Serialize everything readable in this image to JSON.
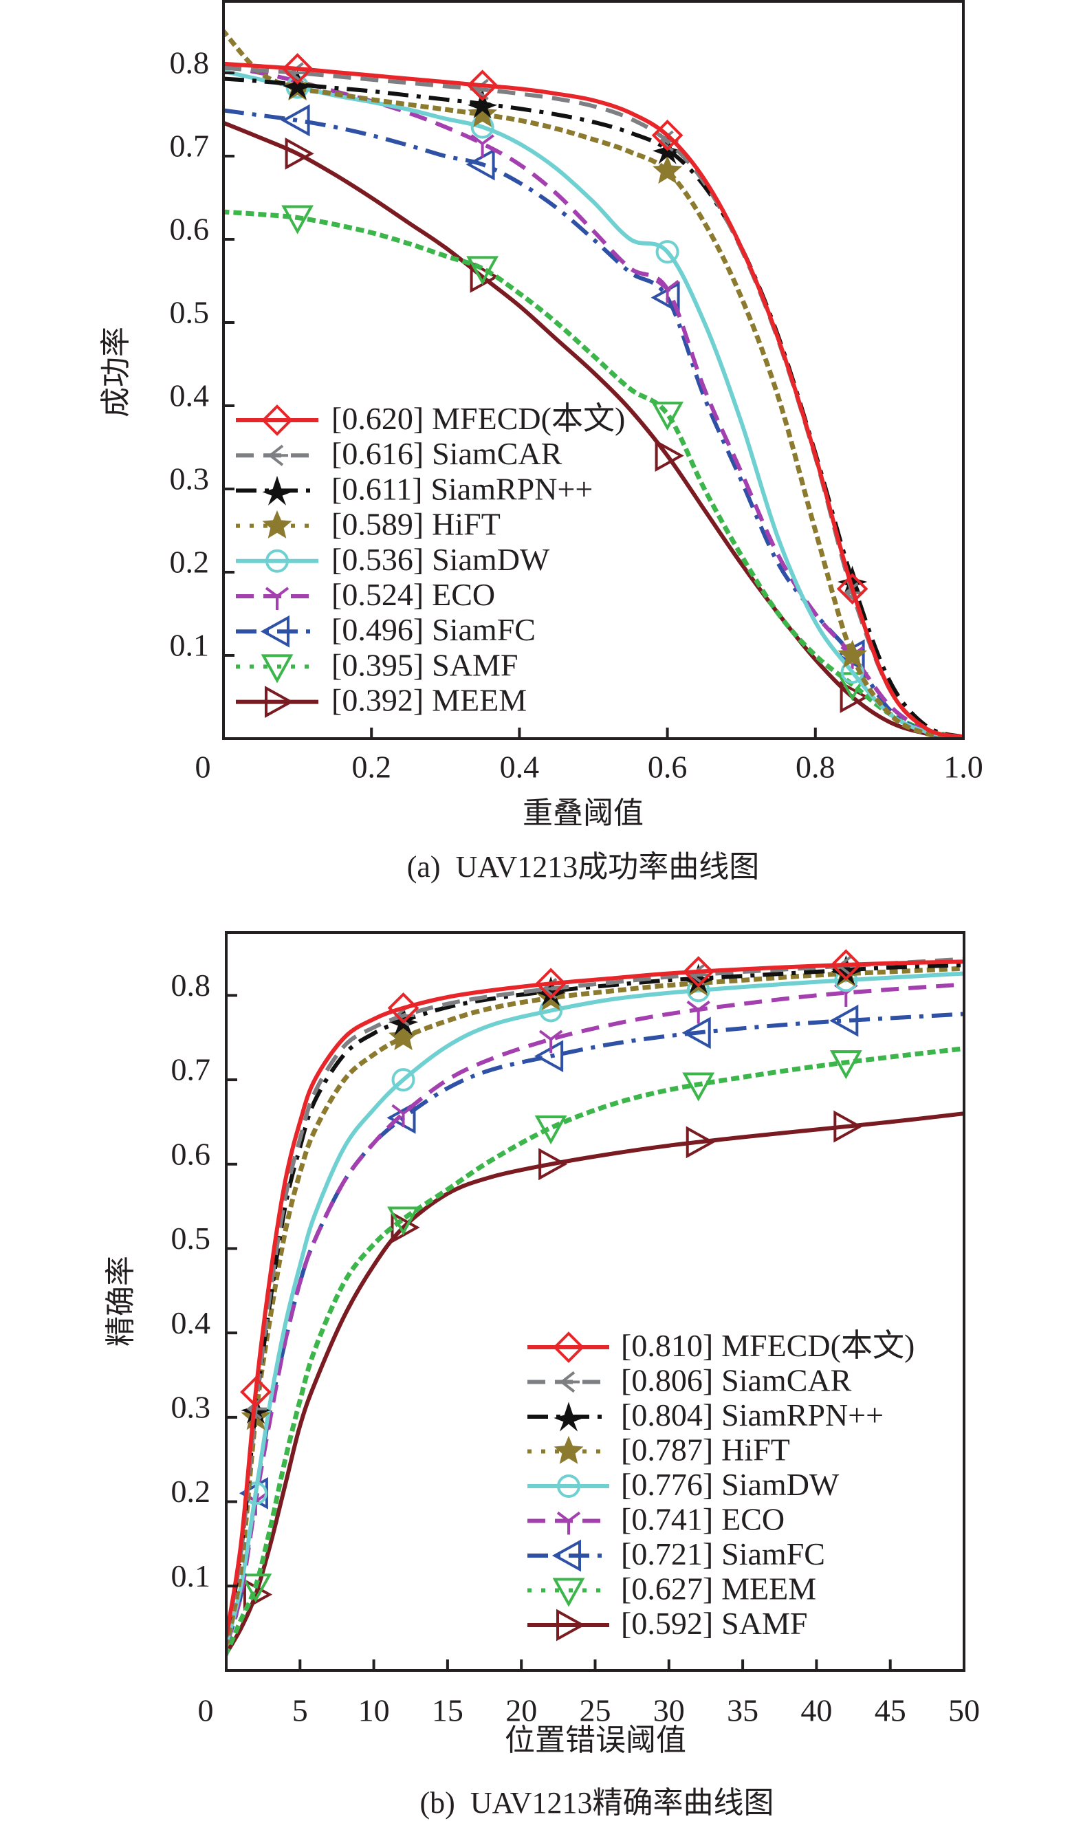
{
  "chart_data": [
    {
      "id": "a",
      "type": "line",
      "title": "(a)  UAV1213成功率曲线图",
      "xlabel": "重叠阈值",
      "ylabel": "成功率",
      "xlim": [
        0,
        1.0
      ],
      "ylim": [
        0,
        0.887
      ],
      "xticks": [
        {
          "value": 0,
          "label": "0"
        },
        {
          "value": 0.2,
          "label": "0.2"
        },
        {
          "value": 0.4,
          "label": "0.4"
        },
        {
          "value": 0.6,
          "label": "0.6"
        },
        {
          "value": 0.8,
          "label": "0.8"
        },
        {
          "value": 1.0,
          "label": "1.0"
        }
      ],
      "yticks": [
        {
          "value": 0.1,
          "label": "0.1"
        },
        {
          "value": 0.2,
          "label": "0.2"
        },
        {
          "value": 0.3,
          "label": "0.3"
        },
        {
          "value": 0.4,
          "label": "0.4"
        },
        {
          "value": 0.5,
          "label": "0.5"
        },
        {
          "value": 0.6,
          "label": "0.6"
        },
        {
          "value": 0.7,
          "label": "0.7"
        },
        {
          "value": 0.8,
          "label": "0.8"
        }
      ],
      "grid": false,
      "legend_position": "lower-left",
      "marker_x": [
        0.1,
        0.35,
        0.6,
        0.85
      ],
      "x": [
        0,
        0.05,
        0.1,
        0.15,
        0.2,
        0.25,
        0.3,
        0.35,
        0.4,
        0.45,
        0.5,
        0.55,
        0.6,
        0.65,
        0.7,
        0.75,
        0.8,
        0.85,
        0.9,
        0.95,
        1.0
      ],
      "series": [
        {
          "name": "MFECD(本文)",
          "score": "[0.620]",
          "color": "#e8262a",
          "dash": "solid",
          "marker": "diamond",
          "values": [
            0.811,
            0.808,
            0.805,
            0.801,
            0.797,
            0.793,
            0.789,
            0.785,
            0.781,
            0.775,
            0.767,
            0.752,
            0.725,
            0.672,
            0.59,
            0.48,
            0.34,
            0.18,
            0.06,
            0.012,
            0.002
          ]
        },
        {
          "name": "SiamCAR",
          "score": "[0.616]",
          "color": "#7d7f82",
          "dash": "dash",
          "marker": "tri-left",
          "values": [
            0.806,
            0.803,
            0.8,
            0.796,
            0.792,
            0.788,
            0.784,
            0.78,
            0.775,
            0.769,
            0.76,
            0.745,
            0.718,
            0.668,
            0.588,
            0.478,
            0.338,
            0.175,
            0.06,
            0.012,
            0.002
          ]
        },
        {
          "name": "SiamRPN++",
          "score": "[0.611]",
          "color": "#111111",
          "dash": "dashdot",
          "marker": "star4",
          "values": [
            0.793,
            0.79,
            0.786,
            0.782,
            0.778,
            0.773,
            0.768,
            0.763,
            0.757,
            0.75,
            0.741,
            0.728,
            0.708,
            0.664,
            0.59,
            0.483,
            0.343,
            0.19,
            0.07,
            0.015,
            0.002
          ]
        },
        {
          "name": "HiFT",
          "score": "[0.589]",
          "color": "#8c7a2e",
          "dash": "dot",
          "marker": "star5",
          "values": [
            0.85,
            0.8,
            0.782,
            0.775,
            0.768,
            0.762,
            0.756,
            0.75,
            0.743,
            0.733,
            0.72,
            0.705,
            0.682,
            0.62,
            0.53,
            0.41,
            0.25,
            0.1,
            0.03,
            0.006,
            0.001
          ]
        },
        {
          "name": "SiamDW",
          "score": "[0.536]",
          "color": "#6fd0d2",
          "dash": "solid",
          "marker": "circle",
          "values": [
            0.802,
            0.792,
            0.783,
            0.773,
            0.765,
            0.756,
            0.745,
            0.735,
            0.715,
            0.685,
            0.645,
            0.6,
            0.585,
            0.5,
            0.38,
            0.24,
            0.14,
            0.08,
            0.03,
            0.008,
            0.001
          ]
        },
        {
          "name": "ECO",
          "score": "[0.524]",
          "color": "#a33fae",
          "dash": "dash",
          "marker": "tri-down",
          "values": [
            0.808,
            0.8,
            0.79,
            0.778,
            0.766,
            0.752,
            0.735,
            0.715,
            0.69,
            0.655,
            0.61,
            0.565,
            0.54,
            0.42,
            0.32,
            0.22,
            0.15,
            0.1,
            0.04,
            0.01,
            0.001
          ]
        },
        {
          "name": "SiamFC",
          "score": "[0.496]",
          "color": "#2e51a6",
          "dash": "dashdot",
          "marker": "tri-leftopen",
          "values": [
            0.755,
            0.749,
            0.743,
            0.735,
            0.725,
            0.713,
            0.7,
            0.69,
            0.668,
            0.638,
            0.6,
            0.56,
            0.53,
            0.41,
            0.31,
            0.21,
            0.15,
            0.1,
            0.035,
            0.008,
            0.001
          ]
        },
        {
          "name": "SAMF",
          "score": "[0.395]",
          "color": "#3cb54a",
          "dash": "dot",
          "marker": "triangle-down",
          "values": [
            0.633,
            0.63,
            0.626,
            0.618,
            0.608,
            0.595,
            0.58,
            0.565,
            0.535,
            0.5,
            0.46,
            0.42,
            0.39,
            0.3,
            0.22,
            0.15,
            0.1,
            0.065,
            0.03,
            0.01,
            0.001
          ]
        },
        {
          "name": "MEEM",
          "score": "[0.392]",
          "color": "#7a1b22",
          "dash": "solid",
          "marker": "triangle-right",
          "values": [
            0.74,
            0.722,
            0.703,
            0.678,
            0.65,
            0.62,
            0.59,
            0.555,
            0.52,
            0.48,
            0.44,
            0.395,
            0.34,
            0.275,
            0.21,
            0.15,
            0.095,
            0.05,
            0.02,
            0.006,
            0.001
          ]
        }
      ]
    },
    {
      "id": "b",
      "type": "line",
      "title": "(b)  UAV1213精确率曲线图",
      "xlabel": "位置错误阈值",
      "ylabel": "精确率",
      "xlim": [
        0,
        50
      ],
      "ylim": [
        0,
        0.875
      ],
      "xticks": [
        {
          "value": 0,
          "label": "0"
        },
        {
          "value": 5,
          "label": "5"
        },
        {
          "value": 10,
          "label": "10"
        },
        {
          "value": 15,
          "label": "15"
        },
        {
          "value": 20,
          "label": "20"
        },
        {
          "value": 25,
          "label": "25"
        },
        {
          "value": 30,
          "label": "30"
        },
        {
          "value": 35,
          "label": "35"
        },
        {
          "value": 40,
          "label": "40"
        },
        {
          "value": 45,
          "label": "45"
        },
        {
          "value": 50,
          "label": "50"
        }
      ],
      "yticks": [
        {
          "value": 0.1,
          "label": "0.1"
        },
        {
          "value": 0.2,
          "label": "0.2"
        },
        {
          "value": 0.3,
          "label": "0.3"
        },
        {
          "value": 0.4,
          "label": "0.4"
        },
        {
          "value": 0.5,
          "label": "0.5"
        },
        {
          "value": 0.6,
          "label": "0.6"
        },
        {
          "value": 0.7,
          "label": "0.7"
        },
        {
          "value": 0.8,
          "label": "0.8"
        }
      ],
      "grid": false,
      "legend_position": "lower-right",
      "marker_x": [
        2,
        12,
        22,
        32,
        42
      ],
      "x": [
        0,
        1,
        2,
        3,
        4,
        5,
        6,
        8,
        10,
        12,
        15,
        18,
        22,
        26,
        30,
        35,
        40,
        45,
        50
      ],
      "series": [
        {
          "name": "MFECD(本文)",
          "score": "[0.810]",
          "color": "#e8262a",
          "dash": "solid",
          "marker": "diamond",
          "values": [
            0.04,
            0.15,
            0.33,
            0.47,
            0.58,
            0.65,
            0.7,
            0.75,
            0.772,
            0.785,
            0.798,
            0.806,
            0.814,
            0.82,
            0.826,
            0.831,
            0.835,
            0.838,
            0.84
          ]
        },
        {
          "name": "SiamCAR",
          "score": "[0.806]",
          "color": "#7d7f82",
          "dash": "dash",
          "marker": "tri-left",
          "values": [
            0.04,
            0.14,
            0.31,
            0.45,
            0.56,
            0.63,
            0.685,
            0.74,
            0.762,
            0.776,
            0.79,
            0.799,
            0.808,
            0.815,
            0.822,
            0.828,
            0.833,
            0.838,
            0.843
          ]
        },
        {
          "name": "SiamRPN++",
          "score": "[0.804]",
          "color": "#111111",
          "dash": "dashdot",
          "marker": "star4",
          "values": [
            0.04,
            0.14,
            0.31,
            0.44,
            0.55,
            0.62,
            0.675,
            0.73,
            0.755,
            0.77,
            0.786,
            0.796,
            0.805,
            0.812,
            0.818,
            0.823,
            0.828,
            0.833,
            0.836
          ]
        },
        {
          "name": "HiFT",
          "score": "[0.787]",
          "color": "#8c7a2e",
          "dash": "dot",
          "marker": "star5",
          "values": [
            0.03,
            0.12,
            0.3,
            0.42,
            0.52,
            0.59,
            0.64,
            0.7,
            0.73,
            0.75,
            0.77,
            0.785,
            0.797,
            0.805,
            0.812,
            0.818,
            0.824,
            0.828,
            0.832
          ]
        },
        {
          "name": "SiamDW",
          "score": "[0.776]",
          "color": "#6fd0d2",
          "dash": "solid",
          "marker": "circle",
          "values": [
            0.03,
            0.1,
            0.21,
            0.32,
            0.41,
            0.48,
            0.54,
            0.62,
            0.665,
            0.7,
            0.74,
            0.765,
            0.782,
            0.795,
            0.803,
            0.81,
            0.816,
            0.821,
            0.826
          ]
        },
        {
          "name": "ECO",
          "score": "[0.741]",
          "color": "#a33fae",
          "dash": "dash",
          "marker": "tri-down",
          "values": [
            0.03,
            0.09,
            0.2,
            0.3,
            0.39,
            0.46,
            0.51,
            0.58,
            0.625,
            0.66,
            0.7,
            0.725,
            0.748,
            0.765,
            0.778,
            0.79,
            0.8,
            0.807,
            0.813
          ]
        },
        {
          "name": "SiamFC",
          "score": "[0.721]",
          "color": "#2e51a6",
          "dash": "dashdot",
          "marker": "tri-leftopen",
          "values": [
            0.03,
            0.09,
            0.21,
            0.31,
            0.39,
            0.46,
            0.51,
            0.58,
            0.625,
            0.655,
            0.69,
            0.712,
            0.728,
            0.742,
            0.752,
            0.761,
            0.768,
            0.773,
            0.778
          ]
        },
        {
          "name": "MEEM",
          "score": "[0.627]",
          "color": "#3cb54a",
          "dash": "dot",
          "marker": "triangle-down",
          "values": [
            0.02,
            0.06,
            0.1,
            0.17,
            0.25,
            0.32,
            0.38,
            0.46,
            0.505,
            0.535,
            0.57,
            0.605,
            0.643,
            0.67,
            0.688,
            0.703,
            0.716,
            0.727,
            0.737
          ]
        },
        {
          "name": "SAMF",
          "score": "[0.592]",
          "color": "#7a1b22",
          "dash": "solid",
          "marker": "triangle-right",
          "values": [
            0.02,
            0.05,
            0.09,
            0.15,
            0.22,
            0.29,
            0.34,
            0.42,
            0.48,
            0.525,
            0.565,
            0.585,
            0.6,
            0.612,
            0.622,
            0.632,
            0.641,
            0.65,
            0.66
          ]
        }
      ]
    }
  ]
}
